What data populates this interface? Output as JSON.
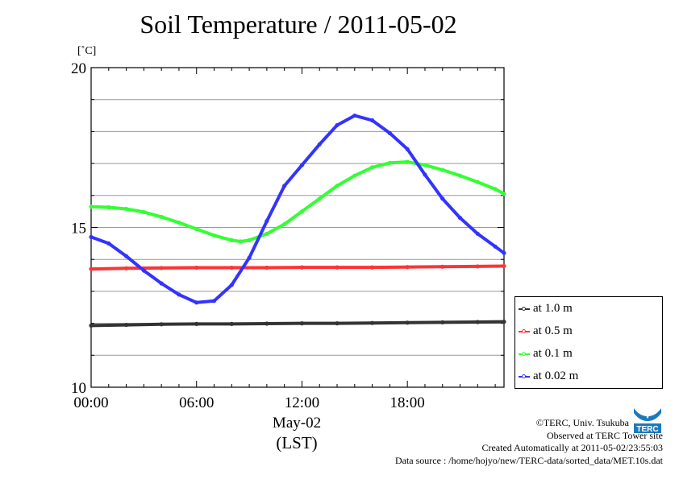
{
  "title": "Soil Temperature / 2011-05-02",
  "chart_data": {
    "type": "line",
    "title": "Soil Temperature / 2011-05-02",
    "ylabel": "[˚C]",
    "xlabel_date": "May-02",
    "xlabel_tz": "(LST)",
    "xlim": [
      0,
      23.5
    ],
    "ylim": [
      10,
      20
    ],
    "xticks": [
      0,
      6,
      12,
      18
    ],
    "xtick_labels": [
      "00:00",
      "06:00",
      "12:00",
      "18:00"
    ],
    "yticks": [
      10,
      15,
      20
    ],
    "ytick_labels": [
      "10",
      "15",
      "20"
    ],
    "grid": true,
    "legend_position": "bottom-right-outside",
    "series": [
      {
        "name": "at 1.0 m",
        "color": "#333333",
        "x": [
          0,
          2,
          4,
          6,
          8,
          10,
          12,
          14,
          16,
          18,
          20,
          22,
          23.5
        ],
        "values": [
          11.93,
          11.95,
          11.97,
          11.98,
          11.98,
          11.99,
          12.0,
          12.0,
          12.01,
          12.02,
          12.03,
          12.04,
          12.05
        ]
      },
      {
        "name": "at 0.5 m",
        "color": "#ff3333",
        "x": [
          0,
          2,
          4,
          6,
          8,
          10,
          12,
          14,
          16,
          18,
          20,
          22,
          23.5
        ],
        "values": [
          13.7,
          13.72,
          13.73,
          13.74,
          13.74,
          13.74,
          13.75,
          13.75,
          13.75,
          13.76,
          13.77,
          13.78,
          13.79
        ]
      },
      {
        "name": "at 0.1 m",
        "color": "#33ff33",
        "x": [
          0,
          1,
          2,
          3,
          4,
          5,
          6,
          7,
          8,
          8.5,
          9,
          10,
          11,
          12,
          13,
          14,
          15,
          16,
          17,
          18,
          19,
          20,
          21,
          22,
          23,
          23.5
        ],
        "values": [
          15.65,
          15.63,
          15.58,
          15.48,
          15.33,
          15.15,
          14.95,
          14.75,
          14.6,
          14.56,
          14.6,
          14.8,
          15.1,
          15.5,
          15.9,
          16.3,
          16.62,
          16.88,
          17.02,
          17.05,
          16.95,
          16.8,
          16.62,
          16.42,
          16.2,
          16.05
        ]
      },
      {
        "name": "at 0.02 m",
        "color": "#3333ff",
        "x": [
          0,
          1,
          2,
          3,
          4,
          5,
          6,
          7,
          8,
          9,
          10,
          11,
          12,
          13,
          14,
          15,
          16,
          17,
          18,
          19,
          20,
          21,
          22,
          23,
          23.5
        ],
        "values": [
          14.7,
          14.5,
          14.1,
          13.65,
          13.25,
          12.9,
          12.65,
          12.7,
          13.2,
          14.05,
          15.2,
          16.3,
          16.95,
          17.6,
          18.2,
          18.5,
          18.35,
          17.95,
          17.45,
          16.65,
          15.9,
          15.3,
          14.8,
          14.4,
          14.2
        ]
      }
    ]
  },
  "credits": {
    "copyright": "©TERC, Univ. Tsukuba",
    "observed": "Observed at TERC Tower site",
    "created": "Created Automatically at 2011-05-02/23:55:03",
    "source": "Data source : /home/hojyo/new/TERC-data/sorted_data/MET.10s.dat"
  },
  "logo": {
    "text": "TERC",
    "color": "#1a7ac0",
    "icon": "terc-logo-icon"
  }
}
